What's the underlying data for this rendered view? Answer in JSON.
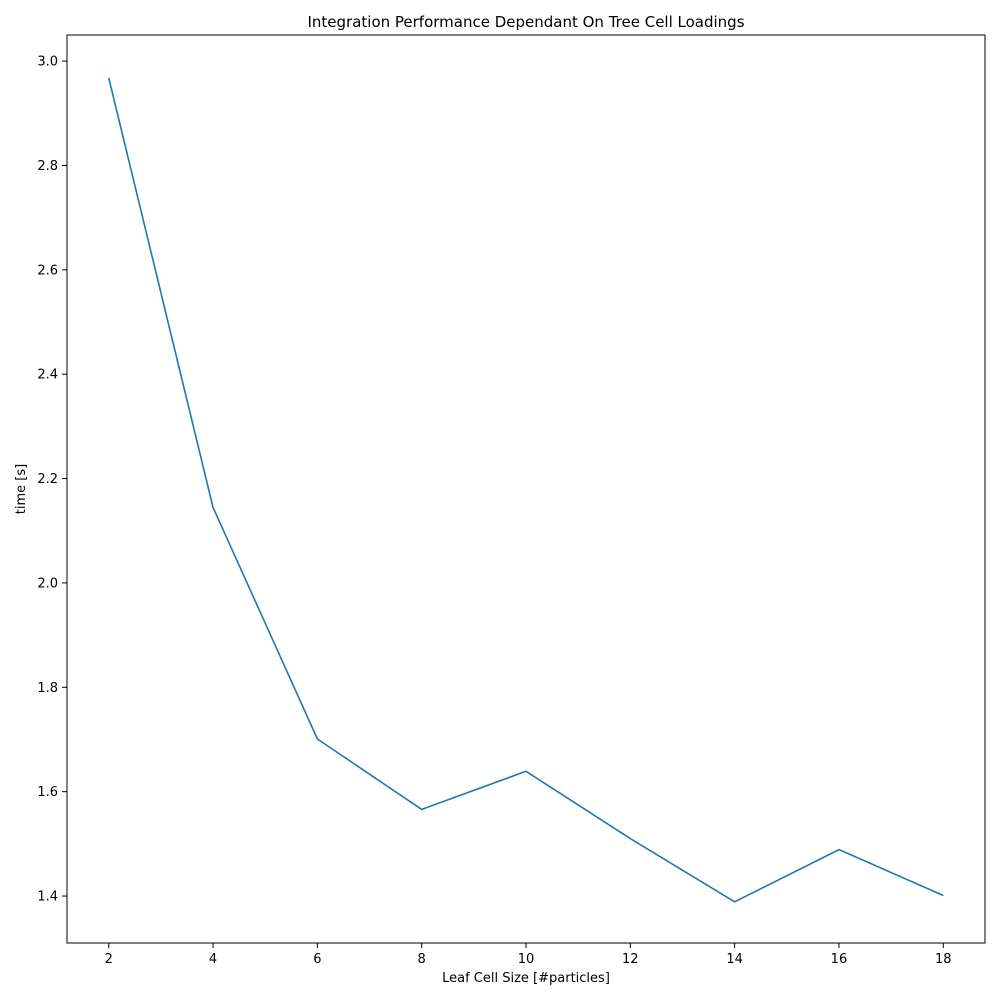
{
  "chart_data": {
    "type": "line",
    "title": "Integration Performance Dependant On Tree Cell Loadings",
    "xlabel": "Leaf Cell Size [#particles]",
    "ylabel": "time [s]",
    "xlim": [
      1.2,
      18.8
    ],
    "ylim": [
      1.31,
      3.05
    ],
    "xticks": [
      "2",
      "4",
      "6",
      "8",
      "10",
      "12",
      "14",
      "16",
      "18"
    ],
    "yticks": [
      "1.4",
      "1.6",
      "1.8",
      "2.0",
      "2.2",
      "2.4",
      "2.6",
      "2.8",
      "3.0"
    ],
    "grid": false,
    "series": [
      {
        "color": "#1f77b4",
        "x": [
          2,
          4,
          6,
          8,
          10,
          12,
          14,
          16,
          18
        ],
        "y": [
          2.968,
          2.145,
          1.701,
          1.566,
          1.639,
          1.51,
          1.389,
          1.489,
          1.401
        ]
      }
    ]
  }
}
